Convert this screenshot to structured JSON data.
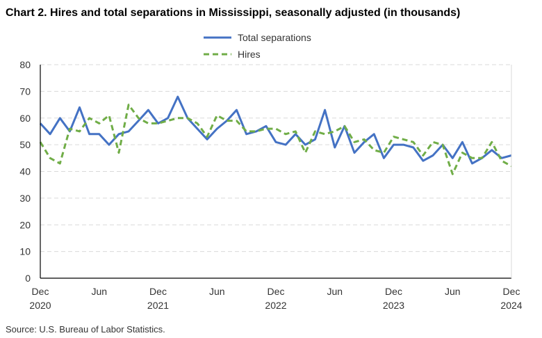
{
  "chart_data": {
    "type": "line",
    "title": "Chart 2. Hires and total separations in Mississippi, seasonally adjusted (in thousands)",
    "xlabel": "",
    "ylabel": "",
    "ylim": [
      0,
      80
    ],
    "yticks": [
      "0",
      "10",
      "20",
      "30",
      "40",
      "50",
      "60",
      "70",
      "80"
    ],
    "grid": true,
    "legend": "top-center",
    "x_range": "Dec 2020 - Dec 2024 (monthly)",
    "xtick_labels": [
      {
        "month": "Dec",
        "year": "2020",
        "index": 0
      },
      {
        "month": "Jun",
        "year": "",
        "index": 6
      },
      {
        "month": "Dec",
        "year": "2021",
        "index": 12
      },
      {
        "month": "Jun",
        "year": "",
        "index": 18
      },
      {
        "month": "Dec",
        "year": "2022",
        "index": 24
      },
      {
        "month": "Jun",
        "year": "",
        "index": 30
      },
      {
        "month": "Dec",
        "year": "2023",
        "index": 36
      },
      {
        "month": "Jun",
        "year": "",
        "index": 42
      },
      {
        "month": "Dec",
        "year": "2024",
        "index": 48
      }
    ],
    "series": [
      {
        "name": "Total separations",
        "color": "#4472C4",
        "dash": false,
        "values": [
          58,
          54,
          60,
          55,
          64,
          54,
          54,
          50,
          54,
          55,
          59,
          63,
          58,
          60,
          68,
          60,
          56,
          52,
          56,
          59,
          63,
          54,
          55,
          57,
          51,
          50,
          54,
          50,
          52,
          63,
          49,
          57,
          47,
          51,
          54,
          45,
          50,
          50,
          49,
          44,
          46,
          50,
          45,
          51,
          43,
          45,
          48,
          45,
          46
        ]
      },
      {
        "name": "Hires",
        "color": "#70AD47",
        "dash": true,
        "values": [
          51,
          45,
          43,
          56,
          55,
          60,
          58,
          61,
          47,
          65,
          60,
          58,
          58,
          59,
          60,
          60,
          58,
          53,
          61,
          59,
          59,
          55,
          55,
          56,
          56,
          54,
          55,
          47,
          55,
          54,
          55,
          57,
          51,
          52,
          48,
          47,
          53,
          52,
          51,
          46,
          51,
          50,
          39,
          47,
          45,
          45,
          51,
          44,
          42
        ]
      }
    ],
    "source": "Source: U.S. Bureau of Labor Statistics."
  }
}
